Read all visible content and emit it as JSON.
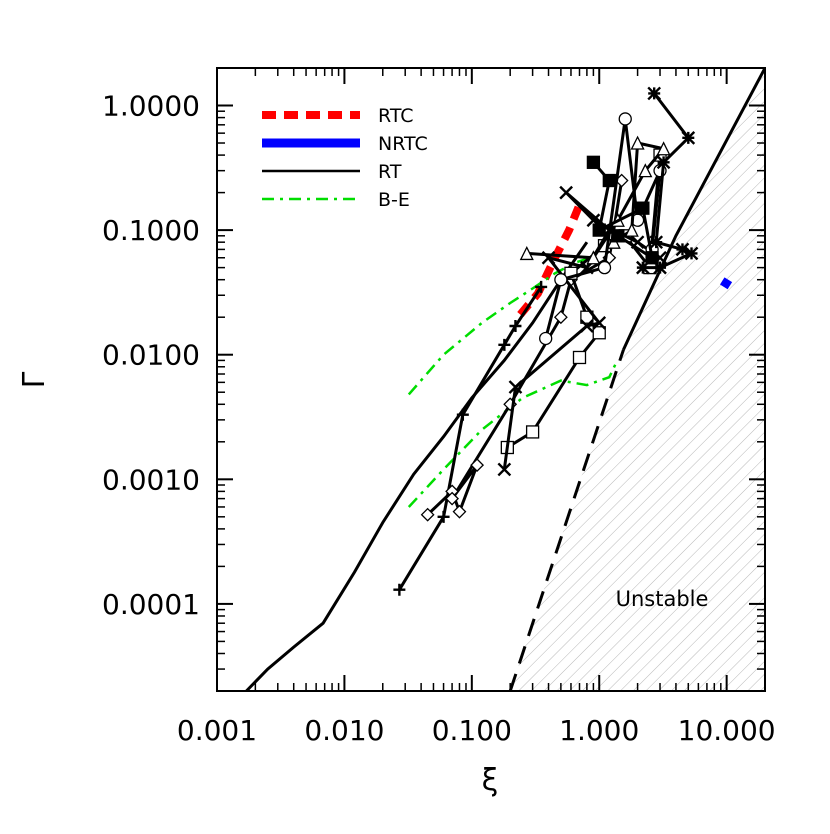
{
  "chart_data": {
    "type": "line",
    "xlabel": "ξ",
    "ylabel": "Γ",
    "x_scale": "log",
    "y_scale": "log",
    "xlim": [
      0.001,
      20.0
    ],
    "ylim": [
      2e-05,
      2.0
    ],
    "x_ticks": [
      0.001,
      0.01,
      0.1,
      1.0,
      10.0
    ],
    "x_tick_labels": [
      "0.001",
      "0.010",
      "0.100",
      "1.000",
      "10.000"
    ],
    "y_ticks": [
      0.0001,
      0.001,
      0.01,
      0.1,
      1.0
    ],
    "y_tick_labels": [
      "0.0001",
      "0.0010",
      "0.0100",
      "0.1000",
      "1.0000"
    ],
    "grid": false,
    "legend_position": "top-left",
    "legend": [
      {
        "label": "RTC",
        "color": "#ff0000",
        "style": "dashed"
      },
      {
        "label": "NRTC",
        "color": "#0000ff",
        "style": "solid-thick"
      },
      {
        "label": "RT",
        "color": "#000000",
        "style": "solid"
      },
      {
        "label": "B-E",
        "color": "#00dd00",
        "style": "dash-dot"
      }
    ],
    "region_label": "Unstable",
    "stability_boundary": {
      "dashed": [
        [
          0.2,
          2e-05
        ],
        [
          1.55,
          0.011
        ]
      ],
      "solid": [
        [
          1.55,
          0.011
        ],
        [
          4.0,
          0.09
        ],
        [
          20.0,
          2.0
        ]
      ]
    },
    "series": [
      {
        "key": "RTC",
        "color": "#ff0000",
        "style": "dashed",
        "points": [
          [
            0.24,
            0.021
          ],
          [
            0.33,
            0.031
          ],
          [
            0.45,
            0.06
          ],
          [
            0.58,
            0.1
          ],
          [
            0.7,
            0.16
          ]
        ]
      },
      {
        "key": "NRTC",
        "color": "#0000ff",
        "style": "thick",
        "points": [
          [
            9.5,
            0.035
          ],
          [
            10.3,
            0.04
          ]
        ]
      },
      {
        "key": "B-E",
        "color": "#00dd00",
        "style": "dash-dot",
        "points": [
          [
            0.032,
            0.0048
          ],
          [
            0.06,
            0.01
          ],
          [
            0.12,
            0.018
          ],
          [
            0.2,
            0.026
          ],
          [
            0.3,
            0.034
          ],
          [
            0.45,
            0.045
          ],
          [
            0.65,
            0.055
          ],
          [
            0.85,
            0.06
          ]
        ]
      },
      {
        "key": "B-E-2",
        "color": "#00dd00",
        "style": "dash-dot",
        "points": [
          [
            0.032,
            0.0006
          ],
          [
            0.06,
            0.0012
          ],
          [
            0.12,
            0.0025
          ],
          [
            0.25,
            0.0045
          ],
          [
            0.5,
            0.0062
          ],
          [
            0.8,
            0.0057
          ],
          [
            1.2,
            0.0066
          ],
          [
            1.35,
            0.0085
          ]
        ]
      },
      {
        "key": "RT-main",
        "color": "#000000",
        "style": "solid",
        "points": [
          [
            0.0017,
            2e-05
          ],
          [
            0.0025,
            3e-05
          ],
          [
            0.004,
            4.5e-05
          ],
          [
            0.0068,
            7e-05
          ],
          [
            0.012,
            0.00018
          ],
          [
            0.02,
            0.00045
          ],
          [
            0.035,
            0.0011
          ],
          [
            0.06,
            0.0022
          ],
          [
            0.1,
            0.0045
          ],
          [
            0.18,
            0.009
          ],
          [
            0.3,
            0.018
          ],
          [
            0.5,
            0.04
          ],
          [
            0.8,
            0.08
          ]
        ]
      },
      {
        "key": "RT-plus",
        "color": "#000000",
        "style": "solid",
        "marker": "plus",
        "points": [
          [
            0.027,
            0.00013
          ],
          [
            0.06,
            0.0005
          ],
          [
            0.085,
            0.0033
          ],
          [
            0.18,
            0.012
          ],
          [
            0.22,
            0.017
          ],
          [
            0.35,
            0.035
          ]
        ]
      },
      {
        "key": "RT-diamond",
        "color": "#000000",
        "style": "solid",
        "marker": "diamond",
        "points": [
          [
            0.045,
            0.00052
          ],
          [
            0.07,
            0.0008
          ],
          [
            0.08,
            0.00055
          ],
          [
            0.11,
            0.0013
          ],
          [
            0.07,
            0.0007
          ],
          [
            0.2,
            0.004
          ],
          [
            0.5,
            0.02
          ],
          [
            0.6,
            0.04
          ],
          [
            1.2,
            0.06
          ],
          [
            1.5,
            0.25
          ]
        ]
      },
      {
        "key": "RT-square",
        "color": "#000000",
        "style": "solid",
        "marker": "square",
        "points": [
          [
            0.19,
            0.0018
          ],
          [
            0.3,
            0.0024
          ],
          [
            0.7,
            0.0095
          ],
          [
            1.0,
            0.015
          ],
          [
            0.8,
            0.02
          ],
          [
            0.6,
            0.045
          ],
          [
            1.1,
            0.075
          ],
          [
            1.6,
            0.09
          ],
          [
            2.5,
            0.05
          ],
          [
            3.0,
            0.4
          ]
        ]
      },
      {
        "key": "RT-x",
        "color": "#000000",
        "style": "solid",
        "marker": "x",
        "points": [
          [
            0.18,
            0.0012
          ],
          [
            0.22,
            0.0055
          ],
          [
            0.8,
            0.017
          ],
          [
            1.0,
            0.018
          ],
          [
            0.4,
            0.06
          ],
          [
            0.8,
            0.05
          ],
          [
            1.2,
            0.1
          ],
          [
            0.55,
            0.2
          ],
          [
            0.9,
            0.12
          ],
          [
            2.0,
            0.08
          ],
          [
            3.0,
            0.06
          ]
        ]
      },
      {
        "key": "RT-circle",
        "color": "#000000",
        "style": "solid",
        "marker": "circle",
        "points": [
          [
            0.38,
            0.0135
          ],
          [
            0.5,
            0.04
          ],
          [
            1.1,
            0.05
          ],
          [
            1.6,
            0.78
          ],
          [
            2.0,
            0.12
          ],
          [
            3.0,
            0.3
          ],
          [
            2.6,
            0.07
          ]
        ]
      },
      {
        "key": "RT-asterisk",
        "color": "#000000",
        "style": "solid",
        "marker": "asterisk",
        "points": [
          [
            2.7,
            1.25
          ],
          [
            5.0,
            0.55
          ],
          [
            3.2,
            0.35
          ],
          [
            2.8,
            0.08
          ],
          [
            4.5,
            0.07
          ],
          [
            5.3,
            0.065
          ],
          [
            3.0,
            0.05
          ],
          [
            2.2,
            0.05
          ]
        ]
      },
      {
        "key": "RT-triangle",
        "color": "#000000",
        "style": "solid",
        "marker": "triangle",
        "points": [
          [
            0.27,
            0.065
          ],
          [
            0.9,
            0.06
          ],
          [
            1.4,
            0.12
          ],
          [
            2.3,
            0.3
          ],
          [
            3.2,
            0.45
          ],
          [
            2.0,
            0.5
          ],
          [
            1.8,
            0.1
          ],
          [
            1.3,
            0.08
          ]
        ]
      },
      {
        "key": "RT-filled-square",
        "color": "#000000",
        "style": "solid",
        "marker": "filled-square",
        "points": [
          [
            0.9,
            0.35
          ],
          [
            1.2,
            0.25
          ],
          [
            1.0,
            0.1
          ],
          [
            2.2,
            0.15
          ],
          [
            2.6,
            0.06
          ],
          [
            1.4,
            0.09
          ]
        ]
      }
    ]
  }
}
